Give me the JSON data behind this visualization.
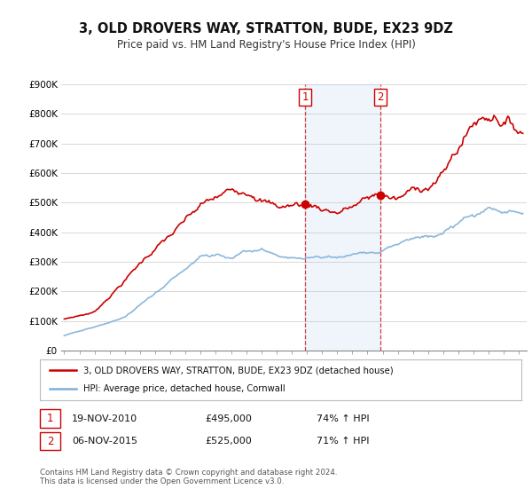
{
  "title": "3, OLD DROVERS WAY, STRATTON, BUDE, EX23 9DZ",
  "subtitle": "Price paid vs. HM Land Registry's House Price Index (HPI)",
  "background_color": "#ffffff",
  "plot_background": "#ffffff",
  "grid_color": "#d8d8d8",
  "sale1_date_num": 2010.88,
  "sale1_price": 495000,
  "sale2_date_num": 2015.84,
  "sale2_price": 525000,
  "hpi_color": "#7fb0d8",
  "price_color": "#cc0000",
  "shade_color": "#ddeeff",
  "legend_entry1": "3, OLD DROVERS WAY, STRATTON, BUDE, EX23 9DZ (detached house)",
  "legend_entry2": "HPI: Average price, detached house, Cornwall",
  "table_row1": [
    "1",
    "19-NOV-2010",
    "£495,000",
    "74% ↑ HPI"
  ],
  "table_row2": [
    "2",
    "06-NOV-2015",
    "£525,000",
    "71% ↑ HPI"
  ],
  "footnote": "Contains HM Land Registry data © Crown copyright and database right 2024.\nThis data is licensed under the Open Government Licence v3.0.",
  "xmin": 1994.8,
  "xmax": 2025.5,
  "ymin": 0,
  "ymax": 900000
}
